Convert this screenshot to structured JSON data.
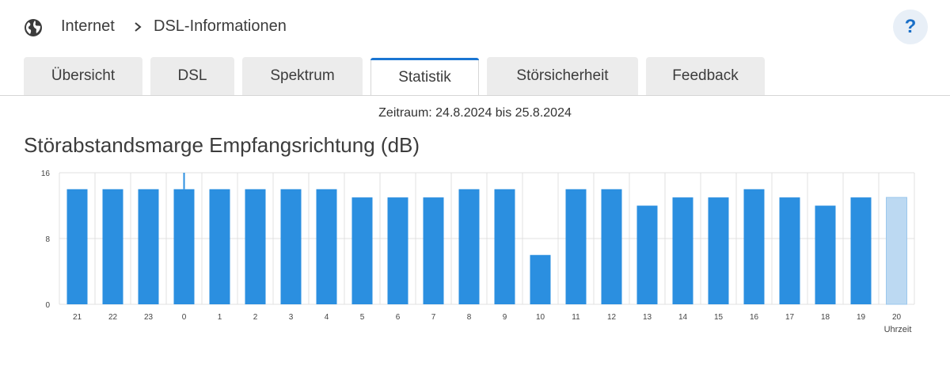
{
  "header": {
    "breadcrumb": [
      "Internet",
      "DSL-Informationen"
    ],
    "help_label": "?"
  },
  "tabs": [
    {
      "label": "Übersicht",
      "active": false
    },
    {
      "label": "DSL",
      "active": false
    },
    {
      "label": "Spektrum",
      "active": false
    },
    {
      "label": "Statistik",
      "active": true
    },
    {
      "label": "Störsicherheit",
      "active": false
    },
    {
      "label": "Feedback",
      "active": false
    }
  ],
  "period": "Zeitraum: 24.8.2024 bis 25.8.2024",
  "chart_title": "Störabstandsmarge Empfangsrichtung (dB)",
  "colors": {
    "bar": "#2b8fe0",
    "bar_current": "#bcd9f2",
    "grid": "#e0e0e0",
    "accent": "#1a75d2"
  },
  "chart_data": {
    "type": "bar",
    "categories": [
      "21",
      "22",
      "23",
      "0",
      "1",
      "2",
      "3",
      "4",
      "5",
      "6",
      "7",
      "8",
      "9",
      "10",
      "11",
      "12",
      "13",
      "14",
      "15",
      "16",
      "17",
      "18",
      "19",
      "20"
    ],
    "values": [
      14,
      14,
      14,
      14,
      14,
      14,
      14,
      14,
      13,
      13,
      13,
      14,
      14,
      6,
      14,
      14,
      12,
      13,
      13,
      14,
      13,
      12,
      13,
      13
    ],
    "current_index": 23,
    "y_ticks": [
      0,
      8,
      16
    ],
    "ylim": [
      0,
      16
    ],
    "xlabel": "Uhrzeit",
    "ylabel": "",
    "grid": true
  }
}
